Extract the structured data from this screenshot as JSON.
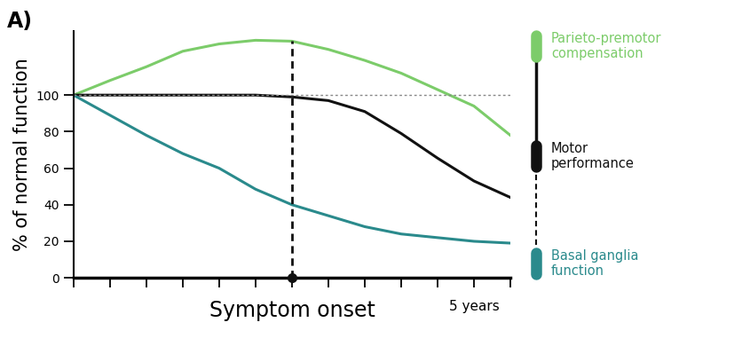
{
  "chart_data": {
    "type": "line",
    "panel_label": "A)",
    "y_label": "% of normal function",
    "x": [
      -6,
      -5,
      -4,
      -3,
      -2,
      -1,
      0,
      1,
      2,
      3,
      4,
      5,
      6
    ],
    "xlim": [
      -6,
      6
    ],
    "xticks": [
      -6,
      -5,
      -4,
      -3,
      -2,
      -1,
      0,
      1,
      2,
      3,
      4,
      5,
      6
    ],
    "ylim": [
      0,
      135
    ],
    "yticks": [
      0,
      20,
      40,
      60,
      80,
      100
    ],
    "tick_labels": "y",
    "reference_line": 100,
    "annotations": [
      {
        "text": "Symptom onset",
        "x": 0
      },
      {
        "text": "5 years",
        "x": 5
      }
    ],
    "series": [
      {
        "name": "Parieto-premotor\ncompensation",
        "color": "#7ccc6a",
        "line_style": "solid",
        "values": [
          100,
          108,
          115.5,
          124,
          128,
          130,
          129.5,
          125,
          119,
          112,
          103,
          94,
          78
        ]
      },
      {
        "name": "Motor\nperformance",
        "color": "#111111",
        "line_style": "solid",
        "values": [
          100,
          100,
          100,
          100,
          100,
          100,
          99,
          97,
          91,
          79,
          65.5,
          53,
          44
        ]
      },
      {
        "name": "Basal ganglia\nfunction",
        "color": "#2a8a8c",
        "line_style": "solid",
        "values": [
          100,
          89,
          78,
          68,
          60,
          48.5,
          40,
          34,
          28,
          24,
          22,
          20,
          19
        ]
      }
    ]
  }
}
